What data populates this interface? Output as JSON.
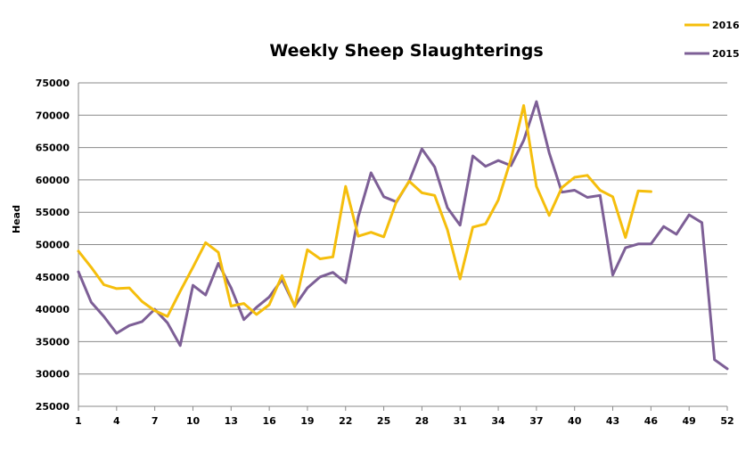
{
  "chart_data": {
    "type": "line",
    "title": "Weekly Sheep Slaughterings",
    "xlabel": "",
    "ylabel": "Head",
    "ylim": [
      25000,
      75000
    ],
    "yticks": [
      25000,
      30000,
      35000,
      40000,
      45000,
      50000,
      55000,
      60000,
      65000,
      70000,
      75000
    ],
    "xlim": [
      1,
      52
    ],
    "xticks": [
      1,
      4,
      7,
      10,
      13,
      16,
      19,
      22,
      25,
      28,
      31,
      34,
      37,
      40,
      43,
      46,
      49,
      52
    ],
    "grid": true,
    "legend_position": "top-right",
    "series": [
      {
        "name": "2016",
        "color": "#f5be0c",
        "x": [
          1,
          2,
          3,
          4,
          5,
          6,
          7,
          8,
          9,
          10,
          11,
          12,
          13,
          14,
          15,
          16,
          17,
          18,
          19,
          20,
          21,
          22,
          23,
          24,
          25,
          26,
          27,
          28,
          29,
          30,
          31,
          32,
          33,
          34,
          35,
          36,
          37,
          38,
          39,
          40,
          41,
          42,
          43,
          44,
          45,
          46
        ],
        "values": [
          49000,
          46500,
          43800,
          43200,
          43300,
          41200,
          39800,
          38900,
          42800,
          46500,
          50300,
          48800,
          40500,
          40900,
          39200,
          40700,
          45200,
          40400,
          49200,
          47800,
          48100,
          59000,
          51300,
          51900,
          51200,
          56700,
          59800,
          58000,
          57600,
          52300,
          44700,
          52700,
          53200,
          56900,
          63200,
          71500,
          59000,
          54500,
          58800,
          60400,
          60700,
          58400,
          57400,
          51100,
          58300,
          58200
        ]
      },
      {
        "name": "2015",
        "color": "#7d5f96",
        "x": [
          1,
          2,
          3,
          4,
          5,
          6,
          7,
          8,
          9,
          10,
          11,
          12,
          13,
          14,
          15,
          16,
          17,
          18,
          19,
          20,
          21,
          22,
          23,
          24,
          25,
          26,
          27,
          28,
          29,
          30,
          31,
          32,
          33,
          34,
          35,
          36,
          37,
          38,
          39,
          40,
          41,
          42,
          43,
          44,
          45,
          46,
          47,
          48,
          49,
          50,
          51,
          52
        ],
        "values": [
          45800,
          41100,
          38900,
          36300,
          37500,
          38100,
          40000,
          37900,
          34400,
          43700,
          42200,
          47100,
          43300,
          38400,
          40300,
          41900,
          44600,
          40500,
          43300,
          45000,
          45700,
          44100,
          54300,
          61100,
          57400,
          56600,
          59800,
          64800,
          62000,
          55700,
          53000,
          63700,
          62100,
          63000,
          62200,
          66100,
          72100,
          64200,
          58100,
          58400,
          57300,
          57600,
          45300,
          49500,
          50100,
          50100,
          52800,
          51600,
          54600,
          53400,
          32200,
          30800
        ]
      }
    ]
  }
}
